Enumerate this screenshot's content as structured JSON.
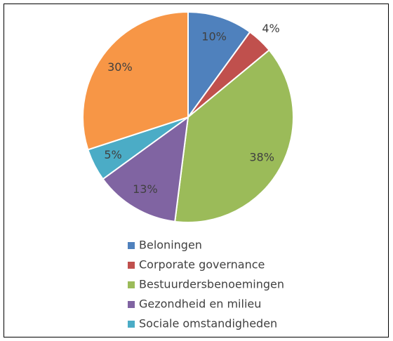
{
  "chart_data": {
    "type": "pie",
    "categories": [
      "Beloningen",
      "Corporate governance",
      "Bestuurdersbenoemingen",
      "Gezondheid en milieu",
      "Sociale omstandigheden",
      null
    ],
    "values": [
      10,
      4,
      38,
      13,
      5,
      30
    ],
    "value_labels": [
      "10%",
      "4%",
      "38%",
      "13%",
      "5%",
      "30%"
    ],
    "colors": [
      "#4f81bd",
      "#c0504d",
      "#9bbb59",
      "#8064a2",
      "#4bacc6",
      "#f79646"
    ],
    "legend": "bottom"
  }
}
